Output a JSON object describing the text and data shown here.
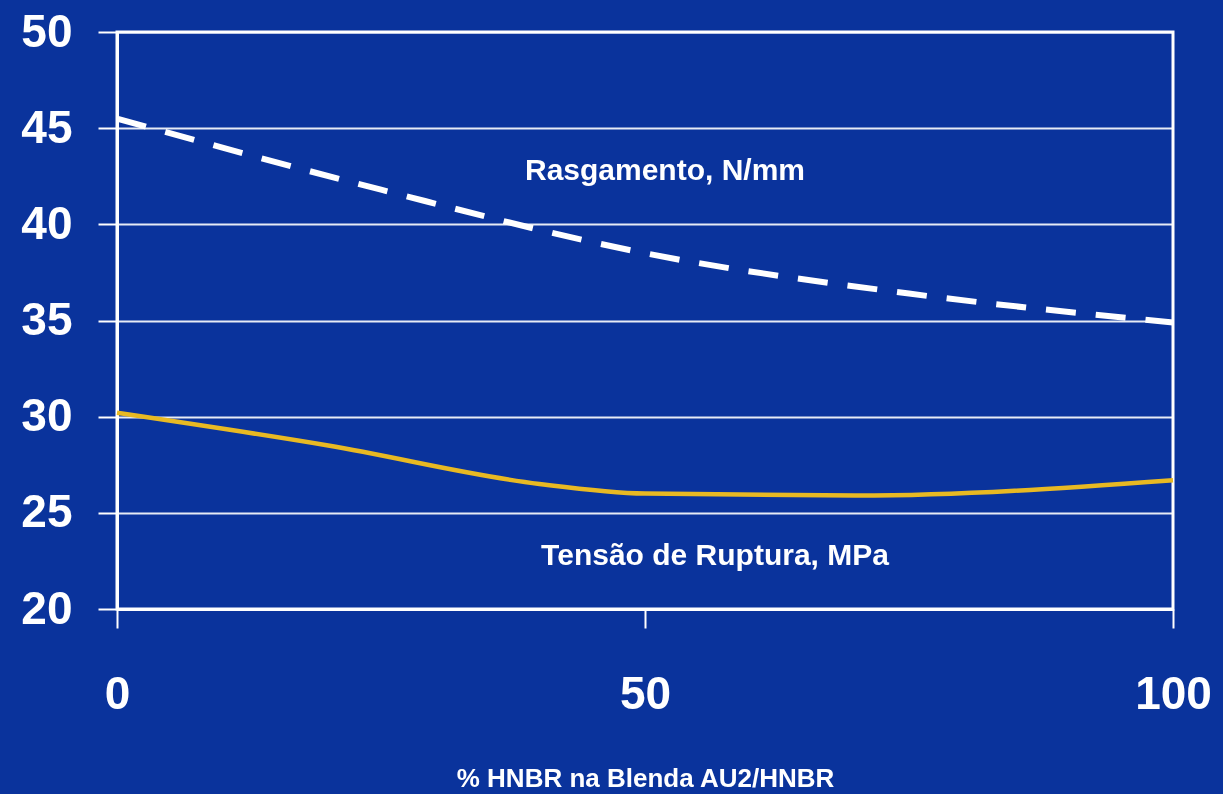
{
  "chart_data": {
    "type": "line",
    "xlabel": "% HNBR na Blenda AU2/HNBR",
    "xlim": [
      0,
      100
    ],
    "xticks": [
      0,
      50,
      100
    ],
    "ylim": [
      20,
      50
    ],
    "yticks": [
      20,
      25,
      30,
      35,
      40,
      45,
      50
    ],
    "grid": "y",
    "series": [
      {
        "name": "Rasgamento, N/mm",
        "color": "#ffffff",
        "line_style": "dashed",
        "x": [
          0,
          25,
          50,
          75,
          100
        ],
        "values": [
          45.5,
          41.8,
          38.5,
          36.4,
          34.9
        ]
      },
      {
        "name": "Tensão de Ruptura, MPa",
        "color": "#e8b923",
        "line_style": "solid",
        "x": [
          0,
          20,
          40,
          50,
          70,
          100
        ],
        "values": [
          30.2,
          28.5,
          26.5,
          26.0,
          25.9,
          26.7
        ]
      }
    ]
  }
}
